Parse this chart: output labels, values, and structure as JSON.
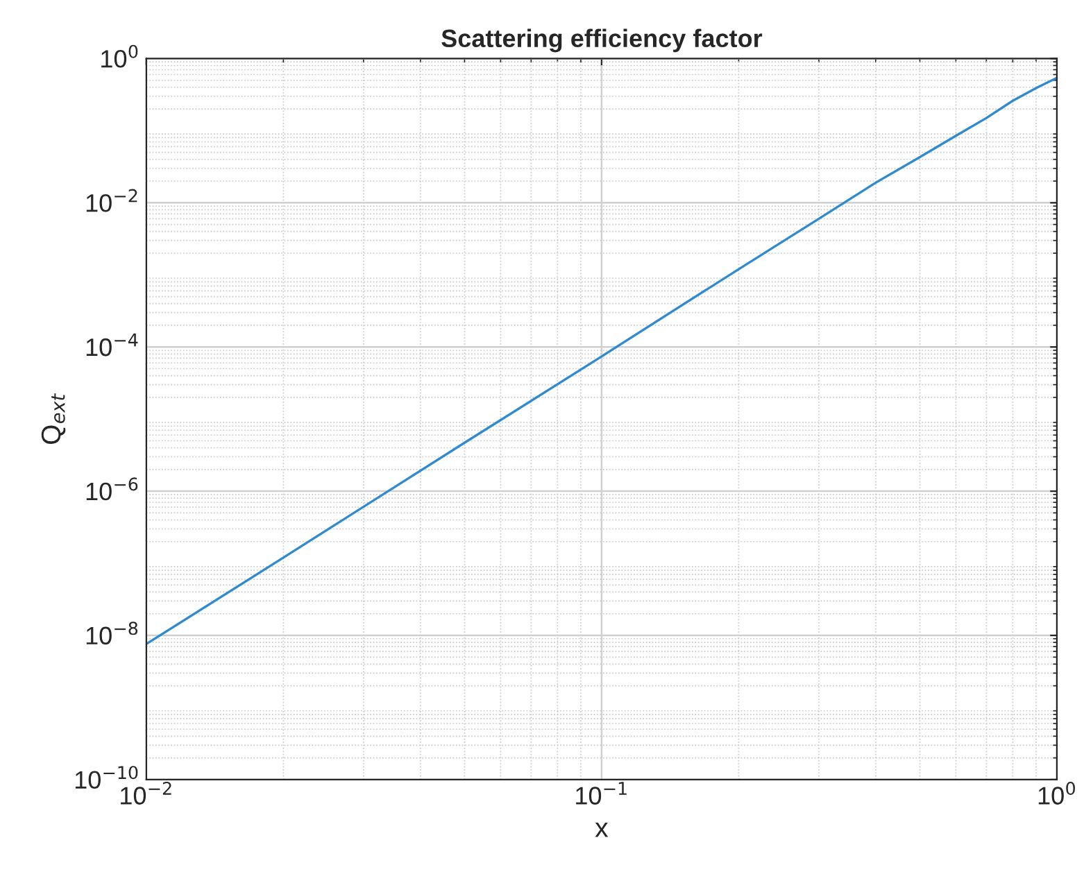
{
  "chart_data": {
    "type": "line",
    "title": "Scattering efficiency factor",
    "xlabel": "x",
    "ylabel": "Q$_{ext}$",
    "log": "xy",
    "grid": true,
    "marker": "none",
    "line_style": "solid",
    "xlim": [
      0.01,
      1
    ],
    "ylim": [
      1e-10,
      1
    ],
    "xticks": [
      {
        "value": 0.01,
        "label": "10$^{−2}$"
      },
      {
        "value": 0.1,
        "label": "10$^{−1}$"
      },
      {
        "value": 1,
        "label": "10$^{0}$"
      }
    ],
    "yticks": [
      {
        "value": 1e-10,
        "label": "10$^{−10}$"
      },
      {
        "value": 1e-08,
        "label": "10$^{−8}$"
      },
      {
        "value": 1e-06,
        "label": "10$^{−6}$"
      },
      {
        "value": 0.0001,
        "label": "10$^{−4}$"
      },
      {
        "value": 0.01,
        "label": "10$^{−2}$"
      },
      {
        "value": 1,
        "label": "10$^{0}$"
      }
    ],
    "series": [
      {
        "color": "#2f8ad0",
        "x": [
          0.01,
          0.02,
          0.05,
          0.1,
          0.2,
          0.3,
          0.4,
          0.5,
          0.6,
          0.7,
          0.8,
          0.9,
          1.0
        ],
        "values": [
          7.6e-09,
          1.2e-07,
          4.7e-06,
          7.4e-05,
          0.0012,
          0.006,
          0.019,
          0.043,
          0.085,
          0.15,
          0.26,
          0.39,
          0.54
        ]
      }
    ]
  }
}
